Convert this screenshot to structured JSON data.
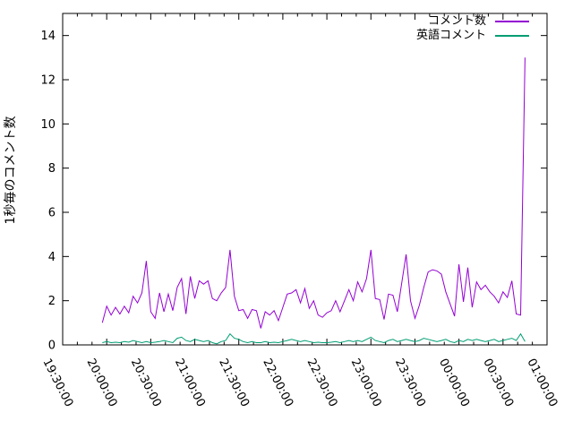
{
  "chart_data": {
    "type": "line",
    "title": "",
    "xlabel": "",
    "ylabel": "1秒毎のコメント数",
    "ylim": [
      0,
      15
    ],
    "ytick_step": 2,
    "ytick_labels": [
      "0",
      "2",
      "4",
      "6",
      "8",
      "10",
      "12",
      "14"
    ],
    "x_axis_start": "19:30:00",
    "x_axis_end": "01:00:00",
    "xtick_labels": [
      "19:30:00",
      "20:00:00",
      "20:30:00",
      "21:00:00",
      "21:30:00",
      "22:00:00",
      "22:30:00",
      "23:00:00",
      "23:30:00",
      "00:00:00",
      "00:30:00",
      "01:00:00"
    ],
    "xtick_interval_minutes": 30,
    "x_minor_tick_minutes": 10,
    "grid": false,
    "legend_position": "top-right-inside",
    "data_start_time": "19:57:00",
    "sample_interval_minutes": 3,
    "series": [
      {
        "name": "コメント数",
        "color": "#9400d3",
        "values": [
          1.0,
          1.75,
          1.35,
          1.7,
          1.4,
          1.75,
          1.45,
          2.2,
          1.9,
          2.35,
          3.8,
          1.5,
          1.2,
          2.35,
          1.5,
          2.3,
          1.55,
          2.6,
          3.0,
          1.4,
          3.1,
          2.1,
          2.9,
          2.75,
          2.9,
          2.1,
          2.0,
          2.35,
          2.6,
          4.3,
          2.2,
          1.55,
          1.6,
          1.2,
          1.6,
          1.55,
          0.75,
          1.5,
          1.35,
          1.55,
          1.1,
          1.7,
          2.3,
          2.35,
          2.5,
          1.9,
          2.55,
          1.65,
          2.0,
          1.35,
          1.25,
          1.45,
          1.55,
          2.0,
          1.5,
          2.0,
          2.5,
          2.0,
          2.85,
          2.4,
          3.0,
          4.3,
          2.1,
          2.05,
          1.15,
          2.3,
          2.25,
          1.5,
          2.8,
          4.1,
          2.0,
          1.2,
          1.8,
          2.6,
          3.3,
          3.4,
          3.35,
          3.2,
          2.4,
          1.85,
          1.3,
          3.65,
          1.95,
          3.5,
          1.7,
          2.85,
          2.5,
          2.7,
          2.4,
          2.2,
          1.9,
          2.4,
          2.15,
          2.9,
          1.4,
          1.35,
          13.0
        ]
      },
      {
        "name": "英語コメント",
        "color": "#009e73",
        "values": [
          0.1,
          0.15,
          0.1,
          0.12,
          0.1,
          0.15,
          0.12,
          0.2,
          0.15,
          0.1,
          0.15,
          0.1,
          0.12,
          0.15,
          0.2,
          0.15,
          0.1,
          0.3,
          0.35,
          0.2,
          0.15,
          0.25,
          0.2,
          0.15,
          0.2,
          0.1,
          0.05,
          0.15,
          0.2,
          0.5,
          0.3,
          0.25,
          0.15,
          0.1,
          0.15,
          0.1,
          0.1,
          0.15,
          0.1,
          0.12,
          0.1,
          0.15,
          0.2,
          0.25,
          0.2,
          0.15,
          0.2,
          0.15,
          0.1,
          0.12,
          0.1,
          0.1,
          0.12,
          0.15,
          0.1,
          0.15,
          0.2,
          0.15,
          0.2,
          0.15,
          0.25,
          0.35,
          0.2,
          0.15,
          0.1,
          0.2,
          0.25,
          0.15,
          0.2,
          0.25,
          0.2,
          0.15,
          0.2,
          0.3,
          0.25,
          0.2,
          0.15,
          0.2,
          0.25,
          0.15,
          0.1,
          0.2,
          0.15,
          0.25,
          0.2,
          0.25,
          0.2,
          0.15,
          0.2,
          0.25,
          0.15,
          0.2,
          0.25,
          0.3,
          0.2,
          0.5,
          0.15
        ]
      }
    ]
  },
  "colors": {
    "axis": "#000000",
    "background": "#ffffff",
    "text": "#000000"
  }
}
